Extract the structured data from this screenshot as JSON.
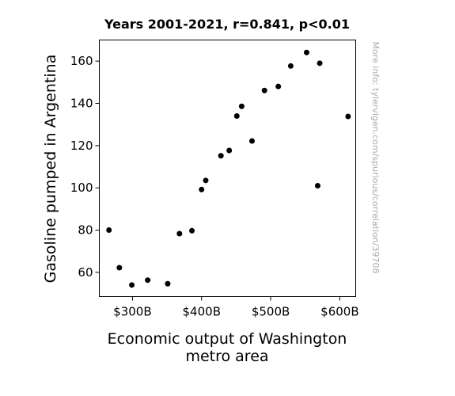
{
  "chart_data": {
    "type": "scatter",
    "title": "Years 2001-2021, r=0.841, p<0.01",
    "xlabel_lines": [
      "Economic output of Washington",
      "metro area"
    ],
    "ylabel": "Gasoline pumped in Argentina",
    "watermark": "More info: tylervigen.com/spurious/correlation/39708",
    "xlim": [
      252,
      623
    ],
    "ylim": [
      48.5,
      170
    ],
    "x_ticks": [
      {
        "value": 300,
        "label": "$300B"
      },
      {
        "value": 400,
        "label": "$400B"
      },
      {
        "value": 500,
        "label": "$500B"
      },
      {
        "value": 600,
        "label": "$600B"
      }
    ],
    "y_ticks": [
      {
        "value": 60,
        "label": "60"
      },
      {
        "value": 80,
        "label": "80"
      },
      {
        "value": 100,
        "label": "100"
      },
      {
        "value": 120,
        "label": "120"
      },
      {
        "value": 140,
        "label": "140"
      },
      {
        "value": 160,
        "label": "160"
      }
    ],
    "points": [
      {
        "x": 266,
        "y": 80.0
      },
      {
        "x": 281,
        "y": 62.2
      },
      {
        "x": 299,
        "y": 54.0
      },
      {
        "x": 322,
        "y": 56.3
      },
      {
        "x": 351,
        "y": 54.6
      },
      {
        "x": 368,
        "y": 78.3
      },
      {
        "x": 386,
        "y": 79.7
      },
      {
        "x": 400,
        "y": 99.2
      },
      {
        "x": 406,
        "y": 103.5
      },
      {
        "x": 428,
        "y": 115.2
      },
      {
        "x": 440,
        "y": 117.7
      },
      {
        "x": 451,
        "y": 134.0
      },
      {
        "x": 458,
        "y": 138.6
      },
      {
        "x": 473,
        "y": 122.2
      },
      {
        "x": 491,
        "y": 146.1
      },
      {
        "x": 511,
        "y": 148.0
      },
      {
        "x": 529,
        "y": 157.7
      },
      {
        "x": 552,
        "y": 164.1
      },
      {
        "x": 568,
        "y": 101.0
      },
      {
        "x": 571,
        "y": 159.0
      },
      {
        "x": 612,
        "y": 133.8
      }
    ],
    "marker_color": "#000000",
    "grid": false
  }
}
